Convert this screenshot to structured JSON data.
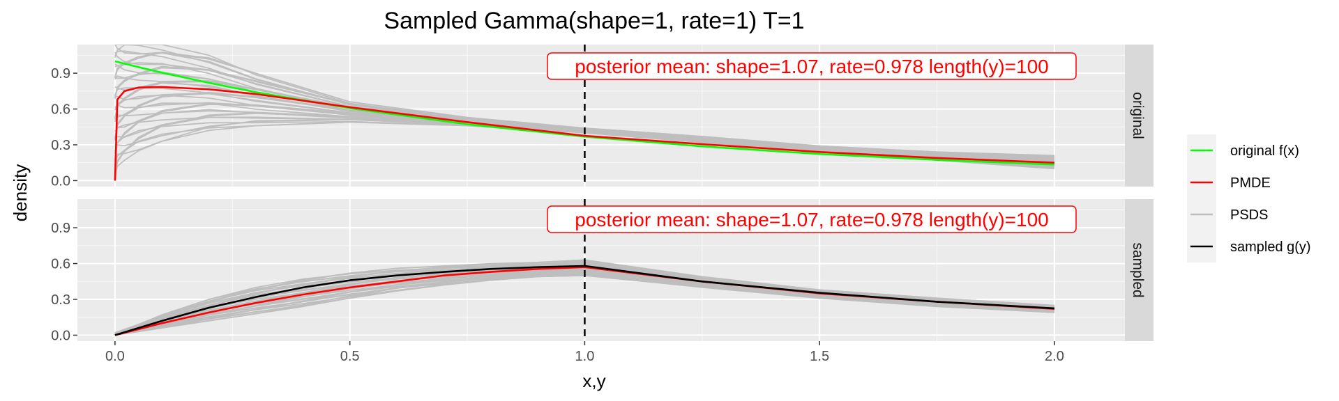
{
  "chart_data": {
    "type": "line",
    "title": "Sampled Gamma(shape=1, rate=1) T=1",
    "xlabel": "x,y",
    "ylabel": "density",
    "xlim": [
      -0.08,
      2.15
    ],
    "ylim": [
      -0.05,
      1.14
    ],
    "x_ticks": [
      "0.0",
      "0.5",
      "1.0",
      "1.5",
      "2.0"
    ],
    "y_ticks": [
      "0.0",
      "0.3",
      "0.6",
      "0.9"
    ],
    "vline_x": 1.0,
    "legend": {
      "position": "right",
      "entries": [
        {
          "label": "original f(x)",
          "color": "#00ff00"
        },
        {
          "label": "PMDE",
          "color": "#ff0000"
        },
        {
          "label": "PSDS",
          "color": "#bebebe"
        },
        {
          "label": "sampled g(y)",
          "color": "#000000"
        }
      ]
    },
    "panels": [
      {
        "strip": "original",
        "annotation": "posterior mean: shape=1.07, rate=0.978 length(y)=100",
        "annotation_color": "#ff0000",
        "x": [
          0,
          0.005,
          0.02,
          0.05,
          0.1,
          0.2,
          0.3,
          0.5,
          0.75,
          1.0,
          1.25,
          1.5,
          1.75,
          2.0
        ],
        "series": [
          {
            "name": "original f(x)",
            "color": "#00ff00",
            "values": [
              1.0,
              0.995,
              0.98,
              0.951,
              0.905,
              0.819,
              0.741,
              0.607,
              0.472,
              0.368,
              0.287,
              0.223,
              0.174,
              0.135
            ]
          },
          {
            "name": "PMDE",
            "color": "#ff0000",
            "values": [
              0.0,
              0.68,
              0.75,
              0.78,
              0.785,
              0.765,
              0.725,
              0.615,
              0.49,
              0.375,
              0.305,
              0.24,
              0.19,
              0.15
            ]
          }
        ],
        "band": {
          "name": "PSDS",
          "color": "#bebebe",
          "count": 36,
          "lower": [
            0.0,
            0.12,
            0.17,
            0.25,
            0.33,
            0.42,
            0.46,
            0.49,
            0.46,
            0.4,
            0.32,
            0.24,
            0.17,
            0.1
          ],
          "upper": [
            1.14,
            1.14,
            1.14,
            1.14,
            1.14,
            1.05,
            0.9,
            0.66,
            0.53,
            0.44,
            0.37,
            0.29,
            0.24,
            0.21
          ]
        }
      },
      {
        "strip": "sampled",
        "annotation": "posterior mean: shape=1.07, rate=0.978 length(y)=100",
        "annotation_color": "#ff0000",
        "x": [
          0,
          0.05,
          0.1,
          0.2,
          0.3,
          0.4,
          0.5,
          0.6,
          0.7,
          0.8,
          0.9,
          1.0,
          1.25,
          1.5,
          1.75,
          2.0
        ],
        "series": [
          {
            "name": "PMDE",
            "color": "#ff0000",
            "values": [
              0.0,
              0.05,
              0.1,
              0.19,
              0.27,
              0.34,
              0.4,
              0.45,
              0.5,
              0.53,
              0.555,
              0.57,
              0.45,
              0.35,
              0.28,
              0.22
            ]
          },
          {
            "name": "sampled g(y)",
            "color": "#000000",
            "values": [
              0.0,
              0.06,
              0.12,
              0.23,
              0.32,
              0.4,
              0.46,
              0.5,
              0.53,
              0.555,
              0.57,
              0.58,
              0.45,
              0.355,
              0.28,
              0.225
            ]
          }
        ],
        "band": {
          "name": "PSDS",
          "color": "#bebebe",
          "count": 36,
          "lower": [
            0.0,
            0.03,
            0.06,
            0.12,
            0.18,
            0.24,
            0.31,
            0.37,
            0.42,
            0.46,
            0.49,
            0.5,
            0.4,
            0.31,
            0.24,
            0.19
          ],
          "upper": [
            0.02,
            0.09,
            0.17,
            0.3,
            0.4,
            0.47,
            0.52,
            0.56,
            0.58,
            0.6,
            0.61,
            0.63,
            0.49,
            0.38,
            0.31,
            0.25
          ]
        }
      }
    ]
  }
}
